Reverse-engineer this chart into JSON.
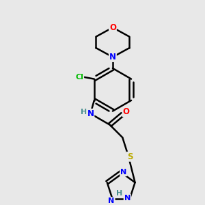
{
  "background_color": "#e8e8e8",
  "bond_color": "#000000",
  "atom_colors": {
    "O": "#ff0000",
    "N": "#0000ff",
    "Cl": "#00bb00",
    "S": "#bbaa00",
    "H": "#4a9090",
    "C": "#000000"
  }
}
